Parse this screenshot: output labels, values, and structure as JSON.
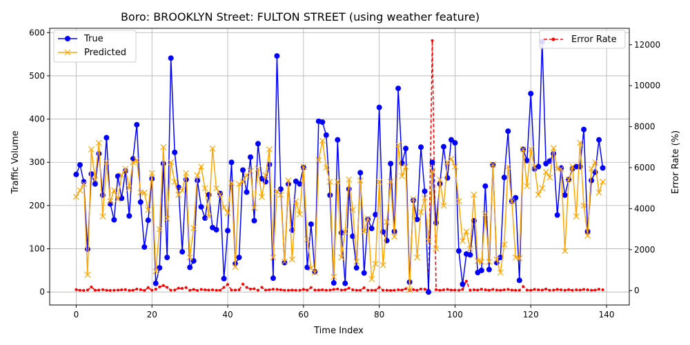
{
  "chart_data": {
    "type": "line",
    "title": "Boro: BROOKLYN Street: FULTON STREET (using weather feature)",
    "xlabel": "Time Index",
    "ylabel": "Traffic Volume",
    "y2label": "Error Rate (%)",
    "xlim": [
      -7,
      146
    ],
    "ylim": [
      -30,
      610
    ],
    "y2lim": [
      -700,
      12800
    ],
    "xticks": [
      0,
      20,
      40,
      60,
      80,
      100,
      120,
      140
    ],
    "yticks": [
      0,
      100,
      200,
      300,
      400,
      500,
      600
    ],
    "y2ticks": [
      0,
      2000,
      4000,
      6000,
      8000,
      10000,
      12000
    ],
    "grid": true,
    "legend_left_position": "upper-left",
    "legend_right_position": "upper-right",
    "x": [
      0,
      1,
      2,
      3,
      4,
      5,
      6,
      7,
      8,
      9,
      10,
      11,
      12,
      13,
      14,
      15,
      16,
      17,
      18,
      19,
      20,
      21,
      22,
      23,
      24,
      25,
      26,
      27,
      28,
      29,
      30,
      31,
      32,
      33,
      34,
      35,
      36,
      37,
      38,
      39,
      40,
      41,
      42,
      43,
      44,
      45,
      46,
      47,
      48,
      49,
      50,
      51,
      52,
      53,
      54,
      55,
      56,
      57,
      58,
      59,
      60,
      61,
      62,
      63,
      64,
      65,
      66,
      67,
      68,
      69,
      70,
      71,
      72,
      73,
      74,
      75,
      76,
      77,
      78,
      79,
      80,
      81,
      82,
      83,
      84,
      85,
      86,
      87,
      88,
      89,
      90,
      91,
      92,
      93,
      94,
      95,
      96,
      97,
      98,
      99,
      100,
      101,
      102,
      103,
      104,
      105,
      106,
      107,
      108,
      109,
      110,
      111,
      112,
      113,
      114,
      115,
      116,
      117,
      118,
      119,
      120,
      121,
      122,
      123,
      124,
      125,
      126,
      127,
      128,
      129,
      130,
      131,
      132,
      133,
      134,
      135,
      136,
      137,
      138,
      139
    ],
    "series": [
      {
        "name": "True",
        "axis": "left",
        "color": "#0000ff",
        "values": [
          272,
          294,
          255,
          99,
          273,
          250,
          320,
          224,
          357,
          204,
          167,
          268,
          217,
          280,
          176,
          308,
          387,
          208,
          104,
          166,
          262,
          20,
          56,
          297,
          80,
          541,
          323,
          242,
          93,
          260,
          57,
          72,
          258,
          197,
          171,
          225,
          149,
          144,
          228,
          31,
          142,
          300,
          65,
          80,
          282,
          231,
          312,
          165,
          343,
          262,
          255,
          295,
          32,
          546,
          238,
          68,
          250,
          143,
          256,
          250,
          288,
          57,
          157,
          47,
          395,
          393,
          363,
          224,
          21,
          352,
          137,
          20,
          238,
          129,
          56,
          276,
          44,
          168,
          147,
          179,
          427,
          139,
          119,
          297,
          140,
          471,
          298,
          332,
          23,
          212,
          168,
          335,
          233,
          0,
          300,
          160,
          250,
          336,
          264,
          352,
          345,
          95,
          18,
          88,
          86,
          165,
          45,
          50,
          245,
          52,
          294,
          68,
          80,
          265,
          372,
          210,
          218,
          27,
          330,
          304,
          459,
          285,
          290,
          579,
          297,
          303,
          320,
          178,
          287,
          224,
          260,
          285,
          290,
          290,
          376,
          140,
          258,
          277,
          352,
          287
        ]
      },
      {
        "name": "Predicted",
        "axis": "left",
        "color": "#ffa500",
        "values": [
          220,
          235,
          250,
          40,
          330,
          260,
          345,
          175,
          300,
          210,
          235,
          215,
          270,
          285,
          240,
          300,
          305,
          230,
          230,
          190,
          275,
          48,
          145,
          335,
          170,
          300,
          255,
          225,
          235,
          275,
          80,
          148,
          270,
          290,
          240,
          175,
          332,
          240,
          225,
          195,
          183,
          252,
          58,
          250,
          255,
          270,
          280,
          195,
          285,
          220,
          270,
          330,
          80,
          233,
          225,
          70,
          258,
          75,
          210,
          180,
          290,
          122,
          55,
          45,
          305,
          350,
          288,
          255,
          35,
          255,
          80,
          140,
          260,
          190,
          70,
          258,
          140,
          170,
          30,
          65,
          255,
          62,
          162,
          255,
          128,
          340,
          268,
          290,
          5,
          215,
          80,
          185,
          218,
          118,
          280,
          100,
          260,
          200,
          300,
          308,
          290,
          210,
          118,
          140,
          100,
          225,
          72,
          70,
          180,
          70,
          295,
          75,
          45,
          110,
          290,
          210,
          80,
          78,
          330,
          245,
          330,
          290,
          225,
          240,
          278,
          265,
          333,
          285,
          285,
          95,
          260,
          290,
          175,
          345,
          200,
          130,
          285,
          300,
          230,
          255
        ]
      },
      {
        "name": "Error Rate",
        "axis": "right",
        "color": "#ff0000",
        "values": [
          50,
          20,
          10,
          30,
          180,
          20,
          30,
          50,
          20,
          10,
          20,
          30,
          40,
          50,
          10,
          20,
          80,
          50,
          10,
          150,
          20,
          70,
          180,
          250,
          160,
          20,
          30,
          120,
          110,
          150,
          20,
          60,
          10,
          60,
          40,
          30,
          40,
          20,
          20,
          160,
          300,
          30,
          30,
          40,
          320,
          160,
          80,
          90,
          20,
          160,
          30,
          40,
          70,
          60,
          40,
          20,
          20,
          30,
          20,
          20,
          60,
          30,
          150,
          30,
          30,
          40,
          20,
          30,
          60,
          80,
          30,
          40,
          120,
          40,
          20,
          20,
          140,
          20,
          20,
          20,
          160,
          20,
          20,
          10,
          20,
          40,
          30,
          90,
          20,
          50,
          20,
          80,
          70,
          40,
          12200,
          50,
          20,
          40,
          60,
          30,
          30,
          20,
          60,
          460,
          20,
          40,
          30,
          70,
          40,
          20,
          60,
          30,
          20,
          40,
          60,
          30,
          20,
          20,
          200,
          30,
          20,
          60,
          40,
          30,
          80,
          20,
          30,
          60,
          40,
          20,
          50,
          20,
          40,
          30,
          60,
          40,
          20,
          30,
          70,
          40
        ]
      }
    ]
  }
}
